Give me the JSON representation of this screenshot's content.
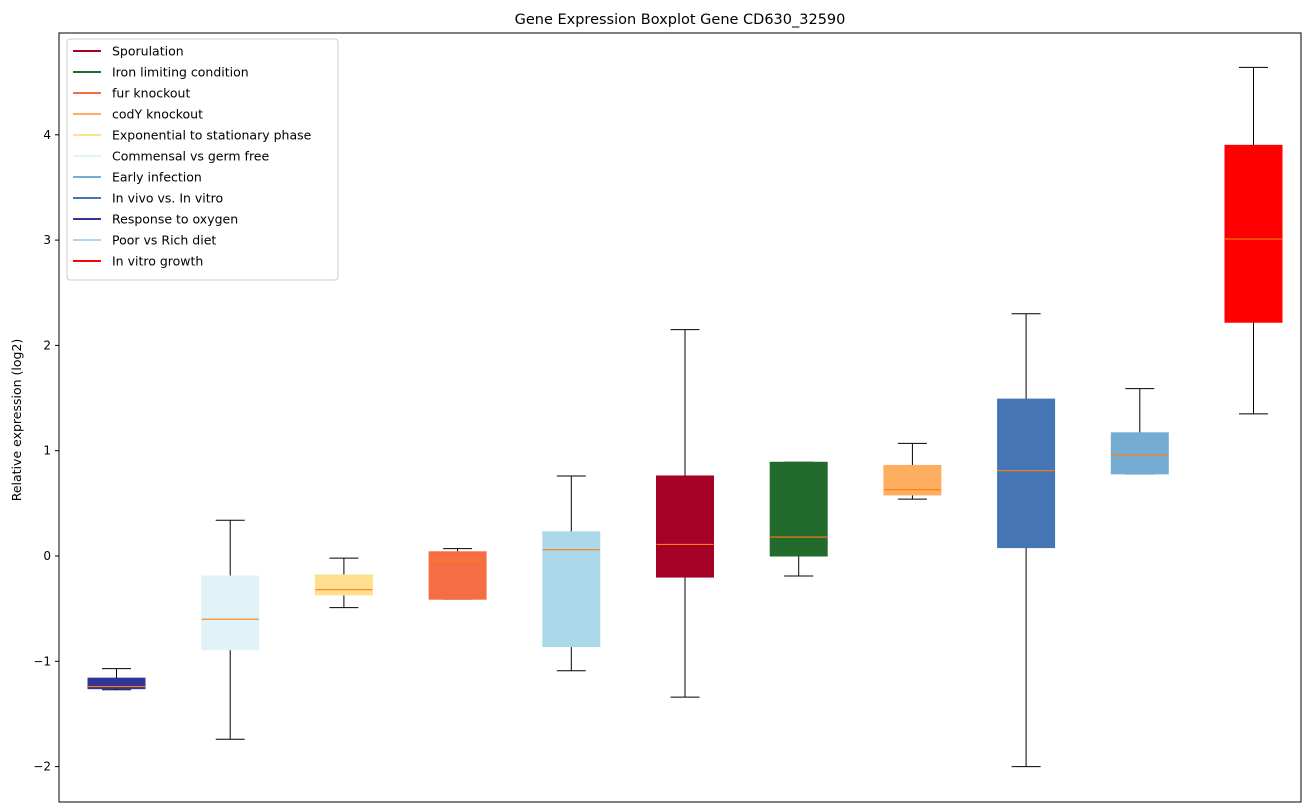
{
  "chart_data": {
    "type": "boxplot",
    "title": "Gene Expression Boxplot Gene CD630_32590",
    "xlabel": "",
    "ylabel": "Relative expression (log2)",
    "ylim": [
      -2.35,
      4.95
    ],
    "yticks": [
      -2,
      -1,
      0,
      1,
      2,
      3,
      4
    ],
    "ytick_labels": [
      "−2",
      "−1",
      "0",
      "1",
      "2",
      "3",
      "4"
    ],
    "median_color": "#ff7f0e",
    "legend": {
      "placement": "upper-left",
      "entries": [
        {
          "name": "Sporulation",
          "color": "#a50026"
        },
        {
          "name": "Iron limiting condition",
          "color": "#226b2d"
        },
        {
          "name": "fur knockout",
          "color": "#f46d43"
        },
        {
          "name": "codY knockout",
          "color": "#fdae61"
        },
        {
          "name": "Exponential to stationary phase",
          "color": "#fee090"
        },
        {
          "name": "Commensal vs germ free",
          "color": "#e0f3f8"
        },
        {
          "name": "Early infection",
          "color": "#74add1"
        },
        {
          "name": "In vivo vs. In vitro",
          "color": "#4575b4"
        },
        {
          "name": "Response to oxygen",
          "color": "#313695"
        },
        {
          "name": "Poor vs Rich diet",
          "color": "#abd9e9"
        },
        {
          "name": "In vitro growth",
          "color": "#ff0000"
        }
      ]
    },
    "boxes": [
      {
        "color": "#313695",
        "whislo": -1.27,
        "q1": -1.26,
        "med": -1.24,
        "q3": -1.16,
        "whishi": -1.07
      },
      {
        "color": "#e0f3f8",
        "whislo": -1.74,
        "q1": -0.89,
        "med": -0.6,
        "q3": -0.19,
        "whishi": 0.34
      },
      {
        "color": "#fee090",
        "whislo": -0.49,
        "q1": -0.37,
        "med": -0.32,
        "q3": -0.18,
        "whishi": -0.02
      },
      {
        "color": "#f46d43",
        "whislo": -0.41,
        "q1": -0.41,
        "med": -0.04,
        "q3": 0.04,
        "whishi": 0.07
      },
      {
        "color": "#abd9e9",
        "whislo": -1.09,
        "q1": -0.86,
        "med": 0.06,
        "q3": 0.23,
        "whishi": 0.76
      },
      {
        "color": "#a50026",
        "whislo": -1.34,
        "q1": -0.2,
        "med": 0.11,
        "q3": 0.76,
        "whishi": 2.15
      },
      {
        "color": "#226b2d",
        "whislo": -0.19,
        "q1": 0.0,
        "med": 0.18,
        "q3": 0.89,
        "whishi": 0.89
      },
      {
        "color": "#fdae61",
        "whislo": 0.54,
        "q1": 0.58,
        "med": 0.63,
        "q3": 0.86,
        "whishi": 1.07
      },
      {
        "color": "#4575b4",
        "whislo": -2.0,
        "q1": 0.08,
        "med": 0.81,
        "q3": 1.49,
        "whishi": 2.3
      },
      {
        "color": "#74add1",
        "whislo": 0.78,
        "q1": 0.78,
        "med": 0.96,
        "q3": 1.17,
        "whishi": 1.59
      },
      {
        "color": "#ff0000",
        "whislo": 1.35,
        "q1": 2.22,
        "med": 3.01,
        "q3": 3.9,
        "whishi": 4.64
      }
    ]
  }
}
